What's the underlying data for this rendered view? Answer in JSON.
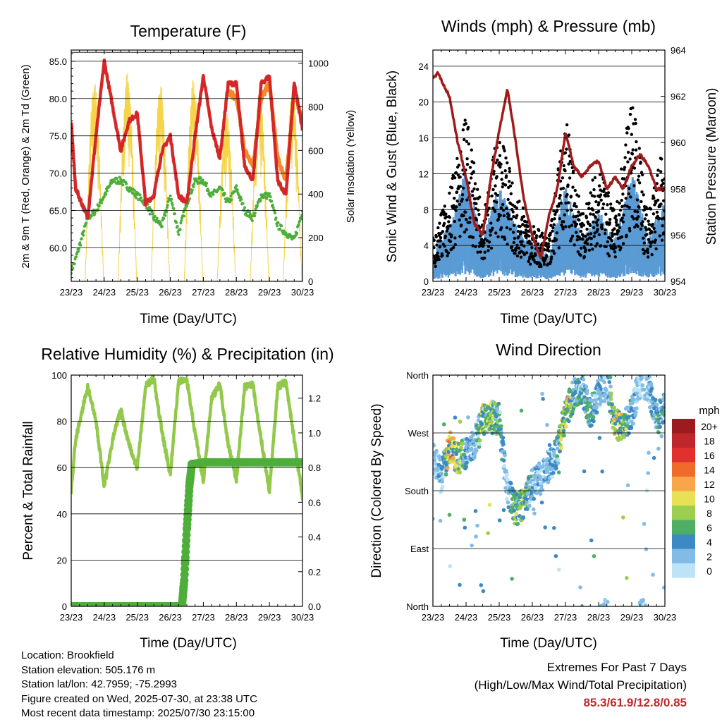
{
  "colors": {
    "temp_red": "#d62728",
    "temp_orange": "#f4892a",
    "dewpoint_green": "#4daf3a",
    "solar_yellow": "#f5d44a",
    "gust_black": "#000000",
    "wind_blue": "#5b9bd5",
    "pressure_maroon": "#a01c1c",
    "rh_lightgreen": "#92c94a",
    "precip_green": "#4daf3a",
    "extremes_red": "#c0272d"
  },
  "info": {
    "location": "Location: Brookfield",
    "elevation": "Station elevation: 505.176 m",
    "latlon": "Station lat/lon: 42.7959; -75.2993",
    "created": "Figure created on Wed, 2025-07-30, at 23:38 UTC",
    "recent": "Most recent data timestamp: 2025/07/30 23:15:00"
  },
  "extremes": {
    "line1": "Extremes For Past 7 Days",
    "line2": "(High/Low/Max Wind/Total Precipitation)",
    "values": "85.3/61.9/12.8/0.85"
  },
  "chart_data": [
    {
      "type": "line",
      "title": "Temperature (F)",
      "xlabel": "Time (Day/UTC)",
      "ylabel": "2m & 9m T (Red, Orange) & 2m Td (Green)",
      "y2label": "Solar Insolation (Yellow)",
      "x_ticks": [
        "23/23",
        "24/23",
        "25/23",
        "26/23",
        "27/23",
        "28/23",
        "29/23",
        "30/23"
      ],
      "xlim": [
        0,
        7
      ],
      "ylim": [
        55.5,
        86.5
      ],
      "y_ticks": [
        "60.0",
        "65.0",
        "70.0",
        "75.0",
        "80.0",
        "85.0"
      ],
      "y2lim": [
        0,
        1060
      ],
      "y2_ticks": [
        "0",
        "200",
        "400",
        "600",
        "800",
        "1000"
      ],
      "series": [
        {
          "name": "2m T",
          "x": [
            0,
            0.13,
            0.5,
            0.75,
            1.0,
            1.25,
            1.5,
            1.75,
            2.0,
            2.25,
            2.5,
            2.75,
            3.0,
            3.25,
            3.5,
            3.75,
            4.0,
            4.25,
            4.5,
            4.75,
            5.0,
            5.25,
            5.5,
            5.75,
            6.0,
            6.25,
            6.5,
            6.75,
            7.0
          ],
          "values": [
            77,
            68,
            64,
            75,
            85,
            79,
            73,
            77,
            78,
            66,
            67,
            73,
            75,
            67,
            66,
            75,
            83,
            76,
            72,
            82,
            82,
            71,
            69,
            82,
            83,
            69,
            67,
            82,
            76
          ]
        },
        {
          "name": "9m T",
          "x": [
            4.75,
            5.0,
            5.25,
            5.5,
            5.75,
            6.0,
            6.25,
            6.5,
            6.75,
            7.0
          ],
          "values": [
            81,
            80,
            73,
            71,
            80,
            82,
            72,
            69,
            81,
            77
          ]
        },
        {
          "name": "2m Td",
          "x": [
            0,
            0.1,
            0.5,
            0.75,
            1.0,
            1.25,
            1.5,
            1.75,
            2.0,
            2.25,
            2.5,
            2.75,
            3.0,
            3.25,
            3.5,
            3.75,
            4.0,
            4.25,
            4.5,
            4.75,
            5.0,
            5.25,
            5.5,
            5.75,
            6.0,
            6.25,
            6.5,
            6.75,
            7.0
          ],
          "values": [
            57,
            58,
            64,
            65,
            67,
            69,
            69,
            68,
            67,
            66,
            64,
            63,
            67,
            62,
            66,
            69,
            69,
            67,
            68,
            66,
            68,
            65,
            64,
            67,
            67,
            63,
            62,
            61,
            65
          ]
        },
        {
          "name": "Solar Insolation",
          "axis": "y2",
          "days": [
            0,
            1,
            2,
            3,
            4,
            5,
            6
          ],
          "peaks": [
            920,
            960,
            910,
            930,
            780,
            880,
            900
          ]
        }
      ]
    },
    {
      "type": "scatter",
      "title": "Winds (mph) & Pressure (mb)",
      "xlabel": "Time (Day/UTC)",
      "ylabel": "Sonic Wind & Gust (Blue, Black)",
      "y2label": "Station Pressure (Maroon)",
      "x_ticks": [
        "23/23",
        "24/23",
        "25/23",
        "26/23",
        "27/23",
        "28/23",
        "29/23",
        "30/23"
      ],
      "xlim": [
        0,
        7
      ],
      "ylim": [
        0,
        25.8
      ],
      "y_ticks": [
        "0",
        "4",
        "8",
        "12",
        "16",
        "20",
        "24"
      ],
      "y2lim": [
        954,
        964
      ],
      "y2_ticks": [
        "954",
        "956",
        "958",
        "960",
        "962",
        "964"
      ],
      "series": [
        {
          "name": "Station Pressure",
          "axis": "y2",
          "x": [
            0,
            0.15,
            0.5,
            0.75,
            1.0,
            1.25,
            1.5,
            1.75,
            2.0,
            2.25,
            2.5,
            2.75,
            3.0,
            3.25,
            3.5,
            3.75,
            4.0,
            4.25,
            4.5,
            4.75,
            5.0,
            5.25,
            5.5,
            5.75,
            6.0,
            6.25,
            6.5,
            6.75,
            7.0
          ],
          "values": [
            962.8,
            963.0,
            962.0,
            960.0,
            958.5,
            956.5,
            956.0,
            958.5,
            960.5,
            962.3,
            960.0,
            957.5,
            956.0,
            955.0,
            956.8,
            958.0,
            960.4,
            959.0,
            958.5,
            959.0,
            959.2,
            958.0,
            958.5,
            958.0,
            959.0,
            959.5,
            959.0,
            958.0,
            958.0
          ]
        },
        {
          "name": "Sonic Wind",
          "x": [
            0,
            0.5,
            1.0,
            1.5,
            2.0,
            2.5,
            3.0,
            3.5,
            4.0,
            4.5,
            5.0,
            5.5,
            6.0,
            6.5,
            7.0
          ],
          "values": [
            2,
            4,
            8,
            3,
            7,
            4,
            3,
            2,
            7,
            3,
            5,
            3,
            8,
            3,
            6
          ]
        },
        {
          "name": "Gust",
          "x": [
            0,
            0.5,
            1.0,
            1.5,
            2.0,
            2.5,
            3.0,
            3.5,
            4.0,
            4.5,
            5.0,
            5.5,
            6.0,
            6.5,
            7.0
          ],
          "values": [
            4,
            8,
            15,
            6,
            14,
            8,
            5,
            4,
            15,
            6,
            11,
            6,
            17,
            6,
            13
          ]
        }
      ]
    },
    {
      "type": "line",
      "title": "Relative Humidity (%) & Precipitation (in)",
      "xlabel": "Time (Day/UTC)",
      "ylabel": "Percent & Total Rainfall",
      "x_ticks": [
        "23/23",
        "24/23",
        "25/23",
        "26/23",
        "27/23",
        "28/23",
        "29/23",
        "30/23"
      ],
      "xlim": [
        0,
        7
      ],
      "ylim": [
        0,
        100
      ],
      "y_ticks": [
        "0",
        "20",
        "40",
        "60",
        "80",
        "100"
      ],
      "y2lim": [
        0,
        1.333
      ],
      "y2_ticks": [
        "0.0",
        "0.2",
        "0.4",
        "0.6",
        "0.8",
        "1.0",
        "1.2"
      ],
      "series": [
        {
          "name": "Relative Humidity",
          "x": [
            0,
            0.13,
            0.5,
            0.75,
            1.0,
            1.25,
            1.5,
            1.75,
            2.0,
            2.25,
            2.5,
            2.75,
            3.0,
            3.25,
            3.5,
            3.75,
            4.0,
            4.25,
            4.5,
            4.75,
            5.0,
            5.25,
            5.5,
            5.75,
            6.0,
            6.25,
            6.5,
            6.75,
            7.0
          ],
          "values": [
            50,
            72,
            95,
            80,
            52,
            72,
            85,
            70,
            60,
            95,
            99,
            75,
            57,
            97,
            98,
            75,
            54,
            90,
            96,
            70,
            55,
            95,
            96,
            72,
            50,
            95,
            97,
            72,
            47
          ]
        },
        {
          "name": "Total Precipitation",
          "axis": "y2",
          "x": [
            0,
            3.35,
            3.42,
            3.5,
            3.58,
            3.65,
            4.0,
            7.0
          ],
          "values": [
            0,
            0,
            0.15,
            0.45,
            0.7,
            0.82,
            0.83,
            0.83
          ]
        }
      ]
    },
    {
      "type": "scatter",
      "title": "Wind Direction",
      "xlabel": "Time (Day/UTC)",
      "ylabel": "Direction (Colored By Speed)",
      "x_ticks": [
        "23/23",
        "24/23",
        "25/23",
        "26/23",
        "27/23",
        "28/23",
        "29/23",
        "30/23"
      ],
      "xlim": [
        0,
        7
      ],
      "y_ticks": [
        "North",
        "East",
        "South",
        "West",
        "North"
      ],
      "colorbar_title": "mph",
      "colorbar_labels": [
        "20+",
        "18",
        "16",
        "14",
        "12",
        "10",
        "8",
        "6",
        "4",
        "2",
        "0"
      ],
      "colorbar_colors": [
        "#9b1b1e",
        "#c0272d",
        "#e0312f",
        "#f06a2c",
        "#f9a64a",
        "#e8e155",
        "#9ccf4f",
        "#4fae66",
        "#3d89c3",
        "#82bce6",
        "#bde3f7"
      ],
      "series": [
        {
          "name": "Wind Direction (deg)",
          "x": [
            0,
            0.25,
            0.5,
            0.75,
            1.0,
            1.25,
            1.5,
            1.75,
            2.0,
            2.25,
            2.5,
            2.75,
            3.0,
            3.25,
            3.5,
            3.75,
            4.0,
            4.25,
            4.5,
            4.75,
            5.0,
            5.25,
            5.5,
            5.75,
            6.0,
            6.25,
            6.5,
            6.75,
            7.0
          ],
          "values": [
            240,
            200,
            250,
            230,
            240,
            250,
            290,
            300,
            290,
            180,
            150,
            160,
            190,
            200,
            220,
            240,
            300,
            330,
            340,
            300,
            330,
            350,
            280,
            280,
            300,
            350,
            340,
            290,
            310
          ],
          "speeds": [
            2,
            3,
            12,
            10,
            5,
            3,
            10,
            9,
            7,
            2,
            8,
            8,
            4,
            3,
            4,
            5,
            12,
            7,
            5,
            6,
            4,
            2,
            12,
            10,
            4,
            2,
            2,
            6,
            5
          ]
        }
      ]
    }
  ]
}
